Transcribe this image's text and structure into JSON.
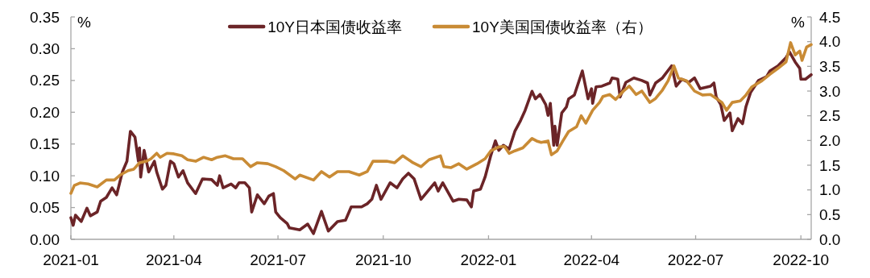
{
  "chart_data": {
    "type": "line",
    "ylabel": "%",
    "y2label": "%",
    "legend": "top",
    "grid": false,
    "xlim": [
      "2021-01-01",
      "2022-10-10"
    ],
    "xticks": [
      "2021-01",
      "2021-04",
      "2021-07",
      "2021-10",
      "2022-01",
      "2022-04",
      "2022-07",
      "2022-10"
    ],
    "ylim": [
      0,
      0.35
    ],
    "yticks": [
      {
        "value": 0,
        "label": "0.00"
      },
      0.05,
      {
        "value": 0.1,
        "label": "0.10"
      },
      0.15,
      {
        "value": 0.2,
        "label": "0.20"
      },
      0.25,
      {
        "value": 0.3,
        "label": "0.30"
      },
      0.35
    ],
    "y2lim": [
      0,
      4.5
    ],
    "y2ticks": [
      {
        "value": 0,
        "label": "0.0"
      },
      0.5,
      {
        "value": 1,
        "label": "1.0"
      },
      1.5,
      {
        "value": 2,
        "label": "2.0"
      },
      2.5,
      {
        "value": 3,
        "label": "3.0"
      },
      3.5,
      {
        "value": 4,
        "label": "4.0"
      },
      4.5
    ],
    "series": [
      {
        "name": "10Y日本国债收益率",
        "color": "#6b2427",
        "x": [
          "2021-01-01",
          "2021-01-03",
          "2021-01-05",
          "2021-01-10",
          "2021-01-15",
          "2021-01-18",
          "2021-01-24",
          "2021-01-27",
          "2021-02-01",
          "2021-02-06",
          "2021-02-10",
          "2021-02-15",
          "2021-02-19",
          "2021-02-22",
          "2021-02-26",
          "2021-03-01",
          "2021-03-02",
          "2021-03-03",
          "2021-03-06",
          "2021-03-10",
          "2021-03-15",
          "2021-03-17",
          "2021-03-22",
          "2021-03-25",
          "2021-03-29",
          "2021-04-01",
          "2021-04-05",
          "2021-04-09",
          "2021-04-13",
          "2021-04-20",
          "2021-04-26",
          "2021-05-04",
          "2021-05-09",
          "2021-05-11",
          "2021-05-14",
          "2021-05-21",
          "2021-05-25",
          "2021-05-28",
          "2021-06-02",
          "2021-06-06",
          "2021-06-08",
          "2021-06-13",
          "2021-06-19",
          "2021-06-23",
          "2021-06-27",
          "2021-06-29",
          "2021-07-03",
          "2021-07-09",
          "2021-07-11",
          "2021-07-20",
          "2021-07-27",
          "2021-08-01",
          "2021-08-08",
          "2021-08-14",
          "2021-08-22",
          "2021-08-29",
          "2021-09-03",
          "2021-09-12",
          "2021-09-17",
          "2021-09-21",
          "2021-09-25",
          "2021-09-29",
          "2021-10-07",
          "2021-10-13",
          "2021-10-18",
          "2021-10-23",
          "2021-10-28",
          "2021-11-03",
          "2021-11-09",
          "2021-11-15",
          "2021-11-18",
          "2021-11-22",
          "2021-12-01",
          "2021-12-06",
          "2021-12-13",
          "2021-12-17",
          "2021-12-19",
          "2021-12-25",
          "2021-12-29",
          "2022-01-03",
          "2022-01-07",
          "2022-01-10",
          "2022-01-14",
          "2022-01-19",
          "2022-01-24",
          "2022-01-29",
          "2022-02-02",
          "2022-02-08",
          "2022-02-11",
          "2022-02-15",
          "2022-02-20",
          "2022-02-22",
          "2022-02-24",
          "2022-02-27",
          "2022-02-28",
          "2022-03-02",
          "2022-03-06",
          "2022-03-10",
          "2022-03-12",
          "2022-03-17",
          "2022-03-24",
          "2022-03-29",
          "2022-04-01",
          "2022-04-02",
          "2022-04-05",
          "2022-04-10",
          "2022-04-17",
          "2022-04-19",
          "2022-04-24",
          "2022-04-26",
          "2022-05-01",
          "2022-05-08",
          "2022-05-15",
          "2022-05-20",
          "2022-05-22",
          "2022-05-27",
          "2022-06-02",
          "2022-06-10",
          "2022-06-14",
          "2022-06-19",
          "2022-06-25",
          "2022-06-30",
          "2022-07-05",
          "2022-07-14",
          "2022-07-17",
          "2022-07-19",
          "2022-07-23",
          "2022-07-26",
          "2022-07-31",
          "2022-08-02",
          "2022-08-07",
          "2022-08-11",
          "2022-08-14",
          "2022-08-18",
          "2022-08-25",
          "2022-09-01",
          "2022-09-04",
          "2022-09-11",
          "2022-09-18",
          "2022-09-21",
          "2022-09-26",
          "2022-09-30",
          "2022-10-01",
          "2022-10-05",
          "2022-10-10"
        ],
        "values": [
          0.034,
          0.022,
          0.038,
          0.028,
          0.049,
          0.037,
          0.043,
          0.06,
          0.066,
          0.081,
          0.07,
          0.106,
          0.123,
          0.17,
          0.161,
          0.123,
          0.144,
          0.098,
          0.14,
          0.106,
          0.123,
          0.106,
          0.079,
          0.085,
          0.123,
          0.119,
          0.098,
          0.108,
          0.089,
          0.072,
          0.095,
          0.094,
          0.085,
          0.1,
          0.081,
          0.087,
          0.081,
          0.089,
          0.089,
          0.081,
          0.043,
          0.07,
          0.056,
          0.068,
          0.072,
          0.043,
          0.034,
          0.025,
          0.018,
          0.015,
          0.024,
          0.009,
          0.044,
          0.013,
          0.028,
          0.03,
          0.051,
          0.051,
          0.056,
          0.063,
          0.085,
          0.063,
          0.089,
          0.081,
          0.095,
          0.104,
          0.095,
          0.063,
          0.076,
          0.089,
          0.076,
          0.089,
          0.06,
          0.063,
          0.062,
          0.051,
          0.076,
          0.079,
          0.098,
          0.132,
          0.155,
          0.14,
          0.148,
          0.142,
          0.17,
          0.187,
          0.203,
          0.233,
          0.221,
          0.228,
          0.212,
          0.195,
          0.214,
          0.148,
          0.178,
          0.148,
          0.199,
          0.208,
          0.221,
          0.227,
          0.265,
          0.221,
          0.237,
          0.214,
          0.24,
          0.241,
          0.246,
          0.254,
          0.252,
          0.224,
          0.247,
          0.254,
          0.25,
          0.246,
          0.227,
          0.246,
          0.254,
          0.273,
          0.241,
          0.252,
          0.247,
          0.254,
          0.237,
          0.241,
          0.246,
          0.224,
          0.212,
          0.187,
          0.199,
          0.171,
          0.19,
          0.182,
          0.209,
          0.231,
          0.25,
          0.256,
          0.265,
          0.273,
          0.286,
          0.295,
          0.279,
          0.269,
          0.252,
          0.252,
          0.259
        ]
      },
      {
        "name": "10Y美国国债收益率（右）",
        "color": "#c98b35",
        "axis": "y2",
        "x": [
          "2021-01-01",
          "2021-01-04",
          "2021-01-09",
          "2021-01-16",
          "2021-01-24",
          "2021-02-01",
          "2021-02-08",
          "2021-02-13",
          "2021-02-20",
          "2021-02-25",
          "2021-03-02",
          "2021-03-08",
          "2021-03-12",
          "2021-03-17",
          "2021-03-20",
          "2021-03-26",
          "2021-04-01",
          "2021-04-08",
          "2021-04-13",
          "2021-04-20",
          "2021-04-27",
          "2021-05-04",
          "2021-05-09",
          "2021-05-16",
          "2021-05-23",
          "2021-05-31",
          "2021-06-07",
          "2021-06-13",
          "2021-06-22",
          "2021-06-29",
          "2021-07-06",
          "2021-07-16",
          "2021-07-20",
          "2021-08-01",
          "2021-08-08",
          "2021-08-15",
          "2021-08-22",
          "2021-09-01",
          "2021-09-10",
          "2021-09-17",
          "2021-09-22",
          "2021-10-04",
          "2021-10-11",
          "2021-10-18",
          "2021-10-27",
          "2021-11-03",
          "2021-11-10",
          "2021-11-20",
          "2021-11-23",
          "2021-11-29",
          "2021-12-06",
          "2021-12-13",
          "2021-12-22",
          "2021-12-29",
          "2022-01-03",
          "2022-01-10",
          "2022-01-15",
          "2022-01-19",
          "2022-01-24",
          "2022-01-31",
          "2022-02-08",
          "2022-02-12",
          "2022-02-16",
          "2022-02-22",
          "2022-02-25",
          "2022-03-02",
          "2022-03-07",
          "2022-03-12",
          "2022-03-19",
          "2022-03-23",
          "2022-03-27",
          "2022-04-02",
          "2022-04-08",
          "2022-04-11",
          "2022-04-17",
          "2022-04-22",
          "2022-04-29",
          "2022-05-04",
          "2022-05-10",
          "2022-05-15",
          "2022-05-22",
          "2022-05-27",
          "2022-06-02",
          "2022-06-07",
          "2022-06-12",
          "2022-06-16",
          "2022-06-23",
          "2022-06-30",
          "2022-07-07",
          "2022-07-14",
          "2022-07-24",
          "2022-07-28",
          "2022-08-02",
          "2022-08-09",
          "2022-08-14",
          "2022-08-19",
          "2022-08-28",
          "2022-09-04",
          "2022-09-11",
          "2022-09-18",
          "2022-09-22",
          "2022-09-26",
          "2022-09-30",
          "2022-10-02",
          "2022-10-06",
          "2022-10-10"
        ],
        "values": [
          0.93,
          1.09,
          1.14,
          1.12,
          1.06,
          1.2,
          1.2,
          1.3,
          1.39,
          1.42,
          1.55,
          1.58,
          1.63,
          1.74,
          1.66,
          1.74,
          1.73,
          1.69,
          1.61,
          1.58,
          1.66,
          1.61,
          1.66,
          1.69,
          1.63,
          1.63,
          1.47,
          1.55,
          1.53,
          1.47,
          1.39,
          1.22,
          1.3,
          1.2,
          1.37,
          1.26,
          1.37,
          1.37,
          1.3,
          1.37,
          1.58,
          1.58,
          1.55,
          1.69,
          1.55,
          1.47,
          1.61,
          1.69,
          1.47,
          1.45,
          1.53,
          1.42,
          1.53,
          1.63,
          1.79,
          1.87,
          1.88,
          1.74,
          1.79,
          1.85,
          2.04,
          1.99,
          1.96,
          1.99,
          1.71,
          1.79,
          1.99,
          2.18,
          2.28,
          2.5,
          2.35,
          2.61,
          2.77,
          2.89,
          2.93,
          2.83,
          3.0,
          3.1,
          2.93,
          3.0,
          2.77,
          2.85,
          3.02,
          3.21,
          3.51,
          3.26,
          3.21,
          3.0,
          2.92,
          2.93,
          2.77,
          2.61,
          2.77,
          2.8,
          2.92,
          3.08,
          3.21,
          3.34,
          3.46,
          3.59,
          3.98,
          3.73,
          3.81,
          3.62,
          3.89,
          3.94
        ]
      }
    ]
  }
}
